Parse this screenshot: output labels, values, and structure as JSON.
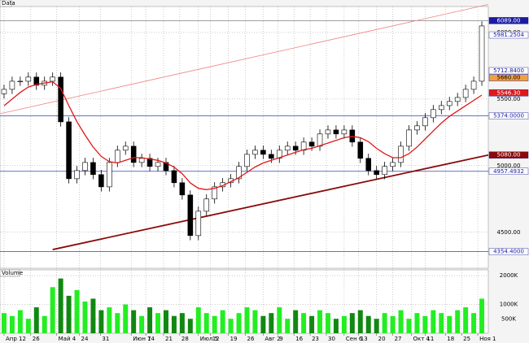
{
  "chart_data": {
    "type": "candlestick",
    "title": "Data",
    "open": [
      5540,
      5573,
      5634,
      5634,
      5665,
      5604,
      5634,
      5665,
      5329,
      4902,
      4963,
      5024,
      4933,
      4841,
      5024,
      5116,
      5146,
      5024,
      5055,
      4994,
      5024,
      4963,
      4872,
      4780,
      4475,
      4658,
      4750,
      4841,
      4872,
      4902,
      4994,
      5085,
      5116,
      5085,
      5055,
      5116,
      5146,
      5116,
      5177,
      5146,
      5238,
      5268,
      5238,
      5268,
      5177,
      5055,
      4963,
      4933,
      4994,
      5024,
      5146,
      5268,
      5299,
      5360,
      5421,
      5451,
      5482,
      5512,
      5573,
      5634
    ],
    "high": [
      5608,
      5669,
      5669,
      5700,
      5700,
      5669,
      5700,
      5700,
      5364,
      4998,
      5059,
      5059,
      4968,
      5059,
      5151,
      5181,
      5181,
      5090,
      5090,
      5059,
      5059,
      4998,
      4907,
      4815,
      4693,
      4785,
      4876,
      4907,
      4937,
      5029,
      5120,
      5151,
      5151,
      5120,
      5151,
      5181,
      5181,
      5212,
      5212,
      5273,
      5303,
      5303,
      5303,
      5303,
      5212,
      5090,
      4998,
      5029,
      5059,
      5181,
      5303,
      5334,
      5395,
      5456,
      5486,
      5517,
      5547,
      5608,
      5669,
      6084
    ],
    "low": [
      5505,
      5538,
      5599,
      5599,
      5569,
      5569,
      5599,
      5294,
      4867,
      4867,
      4928,
      4898,
      4806,
      4806,
      4989,
      5081,
      4989,
      4989,
      4959,
      4959,
      4928,
      4837,
      4745,
      4440,
      4440,
      4623,
      4715,
      4806,
      4837,
      4867,
      4959,
      5050,
      5050,
      5020,
      5020,
      5081,
      5081,
      5081,
      5111,
      5111,
      5203,
      5203,
      5203,
      5142,
      5020,
      4928,
      4898,
      4898,
      4959,
      4989,
      5111,
      5233,
      5264,
      5325,
      5386,
      5416,
      5447,
      5477,
      5538,
      5599
    ],
    "close": [
      5573,
      5634,
      5634,
      5665,
      5604,
      5634,
      5665,
      5329,
      4902,
      4963,
      5024,
      4933,
      4841,
      5024,
      5116,
      5146,
      5024,
      5055,
      4994,
      5024,
      4963,
      4872,
      4780,
      4475,
      4658,
      4750,
      4841,
      4872,
      4902,
      4994,
      5085,
      5116,
      5085,
      5055,
      5116,
      5146,
      5116,
      5177,
      5146,
      5238,
      5268,
      5238,
      5268,
      5177,
      5055,
      4963,
      4933,
      4994,
      5024,
      5146,
      5268,
      5299,
      5360,
      5421,
      5451,
      5482,
      5512,
      5573,
      5634,
      6049
    ],
    "overlays": [
      {
        "color": "#e01818",
        "values": [
          5450,
          5500,
          5550,
          5590,
          5610,
          5620,
          5630,
          5580,
          5450,
          5330,
          5230,
          5140,
          5070,
          5030,
          5020,
          5040,
          5060,
          5060,
          5050,
          5040,
          5020,
          4990,
          4940,
          4870,
          4830,
          4820,
          4830,
          4850,
          4880,
          4910,
          4950,
          4990,
          5020,
          5040,
          5060,
          5080,
          5100,
          5120,
          5130,
          5150,
          5170,
          5190,
          5210,
          5220,
          5210,
          5180,
          5130,
          5090,
          5060,
          5060,
          5090,
          5140,
          5200,
          5260,
          5320,
          5370,
          5410,
          5450,
          5490,
          5530
        ]
      }
    ],
    "trendlines": [
      {
        "color": "#8b0a0a",
        "x": [
          6,
          59.8
        ],
        "y": [
          4370,
          5080
        ]
      },
      {
        "color": "#f08080",
        "x": [
          -0.5,
          59.8
        ],
        "y": [
          5390,
          6210
        ]
      }
    ],
    "xlim": [
      -0.5,
      59.8
    ],
    "xticks": [
      {
        "value": 0,
        "label": "Апр 12"
      },
      {
        "value": 3.3,
        "label": "26"
      },
      {
        "value": 6.5,
        "label": "Май 4"
      },
      {
        "value": 9.3,
        "label": "24"
      },
      {
        "value": 11.9,
        "label": "31"
      },
      {
        "value": 15.7,
        "label": "Июн 7"
      },
      {
        "value": 17.5,
        "label": "14"
      },
      {
        "value": 19.7,
        "label": "21"
      },
      {
        "value": 21.7,
        "label": "28"
      },
      {
        "value": 24,
        "label": "Июл 5"
      },
      {
        "value": 25.5,
        "label": "12"
      },
      {
        "value": 27.7,
        "label": "19"
      },
      {
        "value": 29.8,
        "label": "26"
      },
      {
        "value": 32,
        "label": "Авг 2"
      },
      {
        "value": 33.8,
        "label": "9"
      },
      {
        "value": 35.8,
        "label": "16"
      },
      {
        "value": 37.8,
        "label": "23"
      },
      {
        "value": 39.8,
        "label": "30"
      },
      {
        "value": 42,
        "label": "Сен 6"
      },
      {
        "value": 43.8,
        "label": "13"
      },
      {
        "value": 46,
        "label": "20"
      },
      {
        "value": 48,
        "label": "27"
      },
      {
        "value": 50.3,
        "label": "Окт 4"
      },
      {
        "value": 52,
        "label": "11"
      },
      {
        "value": 54.5,
        "label": "18"
      },
      {
        "value": 56.5,
        "label": "25"
      },
      {
        "value": 58.5,
        "label": "Ноя 1"
      }
    ],
    "ylim": [
      4230,
      6195
    ],
    "yticks": [
      {
        "value": 4500,
        "label": "4500.00"
      },
      {
        "value": 5000,
        "label": "5000.00"
      },
      {
        "value": 5500,
        "label": "5500.00"
      },
      {
        "value": 6000,
        "label": "6000.00"
      }
    ],
    "price_labels": [
      {
        "value": 6089,
        "label": "6089.00",
        "bg": "#1a1aa0",
        "fg": "#ffffff",
        "line": "#808080"
      },
      {
        "value": 5981.2504,
        "label": "5981.2504",
        "bg": "#ffffff",
        "fg": "#1a1aa0"
      },
      {
        "value": 5712.84,
        "label": "5712.8400",
        "bg": "#ffffff",
        "fg": "#1a1aa0"
      },
      {
        "value": 5660,
        "label": "5660.00",
        "bg": "#f0a040",
        "fg": "#000000"
      },
      {
        "value": 5546.3,
        "label": "5546.30",
        "bg": "#e01818",
        "fg": "#ffffff"
      },
      {
        "value": 5374,
        "label": "5374.0000",
        "bg": "#ffffff",
        "fg": "#1a1aa0",
        "line": "#3040c0"
      },
      {
        "value": 5080,
        "label": "5080.00",
        "bg": "#8b0a0a",
        "fg": "#ffffff"
      },
      {
        "value": 4957.4932,
        "label": "4957.4932",
        "bg": "#ffffff",
        "fg": "#1a1aa0",
        "line": "#3040c0"
      },
      {
        "value": 4354.4,
        "label": "4354.4000",
        "bg": "#ffffff",
        "fg": "#1a1aa0",
        "line": "#3040c0"
      }
    ],
    "up_color": "#ffffff",
    "down_color": "#000000",
    "volume": {
      "title": "Volume",
      "up_color": "#22ee22",
      "down_color": "#118811",
      "values": [
        700,
        600,
        800,
        500,
        900,
        600,
        1600,
        1900,
        1300,
        1500,
        1100,
        1200,
        800,
        900,
        700,
        1000,
        800,
        600,
        900,
        700,
        800,
        600,
        700,
        500,
        900,
        700,
        600,
        800,
        500,
        700,
        900,
        800,
        600,
        700,
        900,
        500,
        800,
        700,
        600,
        800,
        700,
        500,
        600,
        700,
        800,
        600,
        500,
        700,
        600,
        800,
        500,
        700,
        600,
        800,
        700,
        600,
        800,
        900,
        700,
        1200
      ],
      "ylim": [
        0,
        2200
      ],
      "yticks": [
        {
          "value": 500,
          "label": "500K"
        },
        {
          "value": 1000,
          "label": "1000K"
        },
        {
          "value": 2000,
          "label": "2000K"
        }
      ]
    },
    "grid": true
  }
}
